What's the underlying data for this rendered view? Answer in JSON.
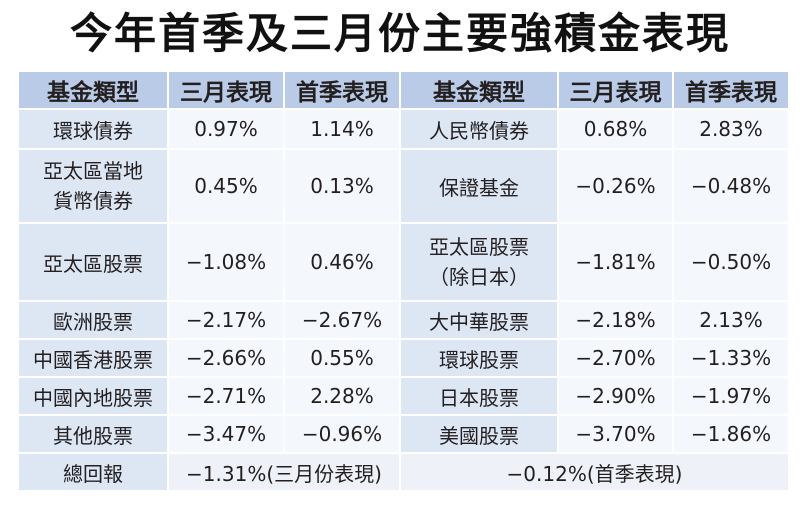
{
  "title": "今年首季及三月份主要強積金表現",
  "headers": [
    "基金類型",
    "三月表現",
    "首季表現",
    "基金類型",
    "三月表現",
    "首季表現"
  ],
  "rows": [
    {
      "left": {
        "name": "環球債券",
        "march": "0.97%",
        "q1": "1.14%"
      },
      "right": {
        "name": "人民幣債券",
        "march": "0.68%",
        "q1": "2.83%"
      }
    },
    {
      "left": {
        "name": "亞太區當地貨幣債券",
        "march": "0.45%",
        "q1": "0.13%"
      },
      "right": {
        "name": "保證基金",
        "march": "−0.26%",
        "q1": "−0.48%"
      }
    },
    {
      "left": {
        "name": "亞太區股票",
        "march": "−1.08%",
        "q1": "0.46%"
      },
      "right": {
        "name": "亞太區股票（除日本）",
        "march": "−1.81%",
        "q1": "−0.50%"
      }
    },
    {
      "left": {
        "name": "歐洲股票",
        "march": "−2.17%",
        "q1": "−2.67%"
      },
      "right": {
        "name": "大中華股票",
        "march": "−2.18%",
        "q1": "2.13%"
      }
    },
    {
      "left": {
        "name": "中國香港股票",
        "march": "−2.66%",
        "q1": "0.55%"
      },
      "right": {
        "name": "環球股票",
        "march": "−2.70%",
        "q1": "−1.33%"
      }
    },
    {
      "left": {
        "name": "中國內地股票",
        "march": "−2.71%",
        "q1": "2.28%"
      },
      "right": {
        "name": "日本股票",
        "march": "−2.90%",
        "q1": "−1.97%"
      }
    },
    {
      "left": {
        "name": "其他股票",
        "march": "−3.47%",
        "q1": "−0.96%"
      },
      "right": {
        "name": "美國股票",
        "march": "−3.70%",
        "q1": "−1.86%"
      }
    }
  ],
  "total": {
    "label": "總回報",
    "march": "−1.31%(三月份表現)",
    "q1": "−0.12%(首季表現)"
  }
}
